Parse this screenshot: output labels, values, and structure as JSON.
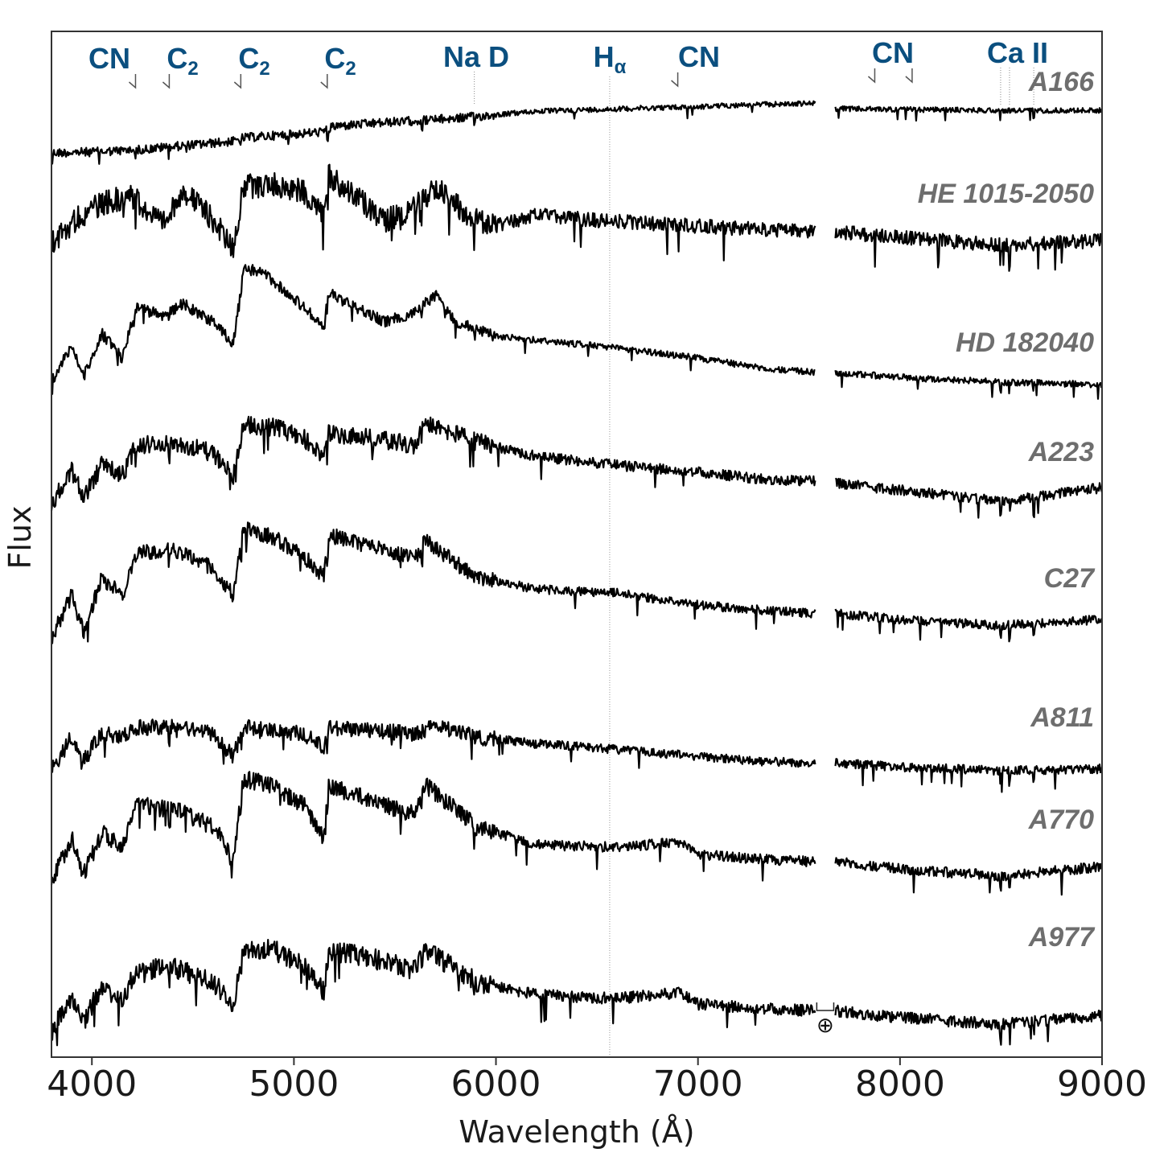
{
  "chart_data": {
    "type": "line",
    "xlabel": "Wavelength (Å)",
    "ylabel": "Flux",
    "xlim": [
      3800,
      9000
    ],
    "xticks": [
      4000,
      5000,
      6000,
      7000,
      8000,
      9000
    ],
    "grid": false,
    "legend": "none",
    "gap": [
      7580,
      7680
    ],
    "telluric_label": "⊕",
    "reference_line": {
      "label": "Hα",
      "x": 6563
    },
    "features": [
      {
        "name": "CN",
        "label": "CN",
        "sub": "",
        "x": [
          4216
        ]
      },
      {
        "name": "C2-4383",
        "label": "C",
        "sub": "2",
        "x": [
          4383
        ]
      },
      {
        "name": "C2-4737",
        "label": "C",
        "sub": "2",
        "x": [
          4737
        ]
      },
      {
        "name": "C2-5165",
        "label": "C",
        "sub": "2",
        "x": [
          5165
        ]
      },
      {
        "name": "NaD",
        "label": "Na D",
        "sub": "",
        "x": [
          5893
        ]
      },
      {
        "name": "Halpha",
        "label": "H",
        "sub": "α",
        "x": [
          6563
        ]
      },
      {
        "name": "CN-6900",
        "label": "CN",
        "sub": "",
        "x": [
          6900
        ]
      },
      {
        "name": "CN-7900",
        "label": "CN",
        "sub": "",
        "x": [
          7875,
          8060
        ]
      },
      {
        "name": "CaII",
        "label": "Ca II",
        "sub": "",
        "x": [
          8498,
          8542,
          8662
        ]
      }
    ],
    "series": [
      {
        "name": "A166",
        "x": [
          3800,
          4000,
          4200,
          4400,
          4600,
          4700,
          4750,
          5000,
          5150,
          5200,
          5500,
          5800,
          6000,
          6200,
          6500,
          6800,
          7000,
          7200,
          7580,
          7680,
          8000,
          8500,
          9000
        ],
        "y": [
          0.0,
          0.01,
          0.03,
          0.07,
          0.11,
          0.13,
          0.17,
          0.21,
          0.24,
          0.3,
          0.35,
          0.39,
          0.43,
          0.47,
          0.49,
          0.51,
          0.52,
          0.54,
          0.56,
          0.5,
          0.49,
          0.48,
          0.48
        ]
      },
      {
        "name": "HE 1015-2050",
        "x": [
          3800,
          3950,
          4050,
          4200,
          4350,
          4450,
          4600,
          4700,
          4750,
          4900,
          5050,
          5150,
          5170,
          5300,
          5450,
          5600,
          5700,
          5800,
          5900,
          6000,
          6200,
          6500,
          6800,
          7000,
          7300,
          7580,
          7680,
          8000,
          8500,
          9000
        ],
        "y": [
          0.2,
          0.45,
          0.55,
          0.62,
          0.35,
          0.68,
          0.4,
          0.15,
          0.7,
          0.72,
          0.65,
          0.45,
          0.8,
          0.62,
          0.4,
          0.52,
          0.7,
          0.55,
          0.4,
          0.35,
          0.45,
          0.4,
          0.37,
          0.35,
          0.32,
          0.3,
          0.3,
          0.25,
          0.18,
          0.22
        ]
      },
      {
        "name": "HD 182040",
        "x": [
          3800,
          3900,
          3960,
          4050,
          4150,
          4220,
          4350,
          4450,
          4600,
          4700,
          4750,
          4850,
          5000,
          5150,
          5170,
          5300,
          5450,
          5600,
          5700,
          5800,
          6000,
          6500,
          7000,
          7300,
          7580,
          7680,
          8000,
          8500,
          9000
        ],
        "y": [
          0.1,
          0.4,
          0.15,
          0.5,
          0.3,
          0.72,
          0.65,
          0.75,
          0.6,
          0.42,
          1.05,
          1.0,
          0.8,
          0.55,
          0.85,
          0.72,
          0.6,
          0.68,
          0.82,
          0.6,
          0.48,
          0.4,
          0.3,
          0.22,
          0.18,
          0.18,
          0.14,
          0.1,
          0.08
        ]
      },
      {
        "name": "A223",
        "x": [
          3800,
          3900,
          3960,
          4050,
          4150,
          4220,
          4400,
          4600,
          4700,
          4750,
          4900,
          5050,
          5150,
          5170,
          5400,
          5600,
          5650,
          5900,
          6200,
          6600,
          7000,
          7300,
          7580,
          7680,
          8000,
          8500,
          9000
        ],
        "y": [
          0.1,
          0.4,
          0.15,
          0.45,
          0.35,
          0.62,
          0.65,
          0.55,
          0.35,
          0.8,
          0.78,
          0.68,
          0.5,
          0.72,
          0.68,
          0.62,
          0.82,
          0.65,
          0.52,
          0.44,
          0.38,
          0.32,
          0.3,
          0.28,
          0.22,
          0.12,
          0.24
        ]
      },
      {
        "name": "C27",
        "x": [
          3800,
          3900,
          3960,
          4050,
          4150,
          4220,
          4400,
          4600,
          4700,
          4750,
          4900,
          5050,
          5150,
          5170,
          5400,
          5600,
          5650,
          5900,
          6200,
          6600,
          7000,
          7300,
          7580,
          7680,
          8000,
          8500,
          9000
        ],
        "y": [
          0.05,
          0.4,
          0.1,
          0.55,
          0.4,
          0.75,
          0.78,
          0.62,
          0.4,
          0.95,
          0.88,
          0.72,
          0.55,
          0.9,
          0.8,
          0.7,
          0.85,
          0.55,
          0.45,
          0.42,
          0.32,
          0.28,
          0.25,
          0.25,
          0.2,
          0.15,
          0.2
        ]
      },
      {
        "name": "A811",
        "x": [
          3800,
          3900,
          3960,
          4050,
          4150,
          4220,
          4400,
          4600,
          4700,
          4750,
          4900,
          5050,
          5150,
          5170,
          5400,
          5600,
          5700,
          5900,
          6200,
          6600,
          7000,
          7300,
          7580,
          7680,
          8000,
          8500,
          9000
        ],
        "y": [
          0.1,
          0.45,
          0.2,
          0.5,
          0.45,
          0.55,
          0.55,
          0.48,
          0.25,
          0.55,
          0.52,
          0.48,
          0.35,
          0.55,
          0.52,
          0.48,
          0.58,
          0.45,
          0.38,
          0.32,
          0.25,
          0.2,
          0.18,
          0.18,
          0.14,
          0.1,
          0.12
        ]
      },
      {
        "name": "A770",
        "x": [
          3800,
          3900,
          3960,
          4050,
          4150,
          4220,
          4400,
          4600,
          4700,
          4750,
          4900,
          5050,
          5150,
          5170,
          5400,
          5600,
          5650,
          5900,
          6200,
          6600,
          6900,
          7000,
          7300,
          7580,
          7680,
          8000,
          8500,
          9000
        ],
        "y": [
          0.1,
          0.45,
          0.15,
          0.5,
          0.4,
          0.72,
          0.7,
          0.55,
          0.3,
          0.95,
          0.88,
          0.72,
          0.45,
          0.9,
          0.75,
          0.65,
          0.9,
          0.55,
          0.4,
          0.38,
          0.42,
          0.32,
          0.28,
          0.26,
          0.26,
          0.2,
          0.14,
          0.22
        ]
      },
      {
        "name": "A977",
        "x": [
          3800,
          3900,
          3960,
          4050,
          4150,
          4220,
          4400,
          4600,
          4700,
          4750,
          4900,
          5050,
          5150,
          5170,
          5400,
          5600,
          5650,
          5900,
          6200,
          6600,
          6900,
          7000,
          7300,
          7580,
          7680,
          8000,
          8500,
          9000
        ],
        "y": [
          0.05,
          0.35,
          0.15,
          0.45,
          0.35,
          0.6,
          0.62,
          0.5,
          0.3,
          0.8,
          0.78,
          0.65,
          0.4,
          0.78,
          0.7,
          0.6,
          0.78,
          0.5,
          0.38,
          0.35,
          0.4,
          0.3,
          0.26,
          0.24,
          0.24,
          0.18,
          0.12,
          0.2
        ]
      }
    ]
  }
}
